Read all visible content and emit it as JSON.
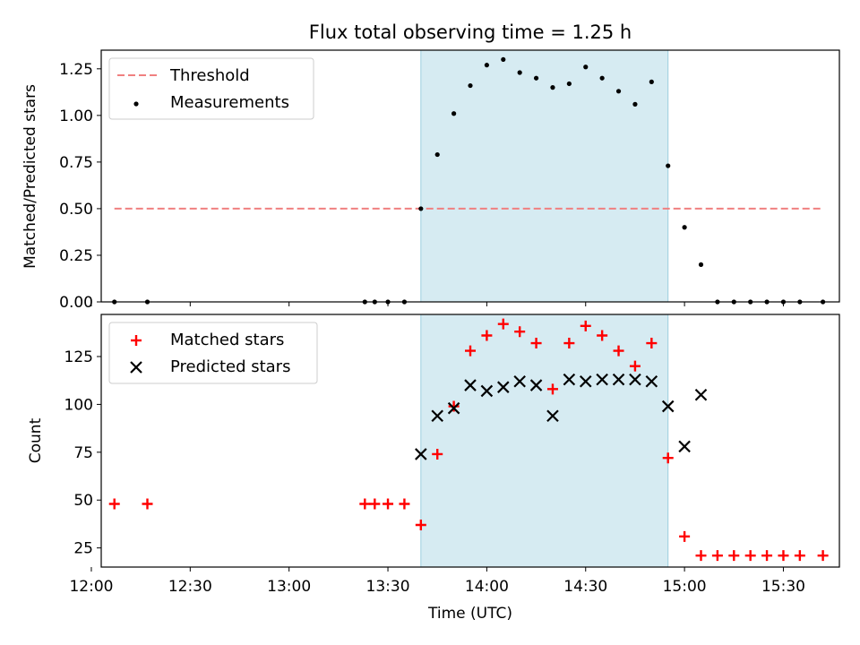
{
  "chart_data": [
    {
      "type": "scatter",
      "title": "Flux total observing time = 1.25 h",
      "xlabel": "",
      "ylabel": "Matched/Predicted stars",
      "xlim": [
        "12:03",
        "15:47"
      ],
      "ylim": [
        0,
        1.35
      ],
      "yticks": [
        0.0,
        0.25,
        0.5,
        0.75,
        1.0,
        1.25
      ],
      "ytick_labels": [
        "0.00",
        "0.25",
        "0.50",
        "0.75",
        "1.00",
        "1.25"
      ],
      "observing_window": [
        "13:40",
        "14:55"
      ],
      "legend_position": "upper-left",
      "series": [
        {
          "name": "Threshold",
          "kind": "dashed-line",
          "color": "#f08080",
          "points": [
            [
              "12:07",
              0.5
            ],
            [
              "15:42",
              0.5
            ]
          ]
        },
        {
          "name": "Measurements",
          "kind": "dot",
          "color": "#000000",
          "points": [
            [
              "12:07",
              0.0
            ],
            [
              "12:17",
              0.0
            ],
            [
              "13:23",
              0.0
            ],
            [
              "13:26",
              0.0
            ],
            [
              "13:30",
              0.0
            ],
            [
              "13:35",
              0.0
            ],
            [
              "13:40",
              0.5
            ],
            [
              "13:45",
              0.79
            ],
            [
              "13:50",
              1.01
            ],
            [
              "13:55",
              1.16
            ],
            [
              "14:00",
              1.27
            ],
            [
              "14:05",
              1.3
            ],
            [
              "14:10",
              1.23
            ],
            [
              "14:15",
              1.2
            ],
            [
              "14:20",
              1.15
            ],
            [
              "14:25",
              1.17
            ],
            [
              "14:30",
              1.26
            ],
            [
              "14:35",
              1.2
            ],
            [
              "14:40",
              1.13
            ],
            [
              "14:45",
              1.06
            ],
            [
              "14:50",
              1.18
            ],
            [
              "14:55",
              0.73
            ],
            [
              "15:00",
              0.4
            ],
            [
              "15:05",
              0.2
            ],
            [
              "15:10",
              0.0
            ],
            [
              "15:15",
              0.0
            ],
            [
              "15:20",
              0.0
            ],
            [
              "15:25",
              0.0
            ],
            [
              "15:30",
              0.0
            ],
            [
              "15:35",
              0.0
            ],
            [
              "15:42",
              0.0
            ]
          ]
        }
      ]
    },
    {
      "type": "scatter",
      "title": "",
      "xlabel": "Time (UTC)",
      "ylabel": "Count",
      "xlim": [
        "12:03",
        "15:47"
      ],
      "xticks": [
        "12:00",
        "12:30",
        "13:00",
        "13:30",
        "14:00",
        "14:30",
        "15:00",
        "15:30"
      ],
      "ylim": [
        15,
        147
      ],
      "yticks": [
        25,
        50,
        75,
        100,
        125
      ],
      "observing_window": [
        "13:40",
        "14:55"
      ],
      "legend_position": "upper-left",
      "series": [
        {
          "name": "Matched stars",
          "kind": "plus",
          "color": "#ff0000",
          "points": [
            [
              "12:07",
              48
            ],
            [
              "12:17",
              48
            ],
            [
              "13:23",
              48
            ],
            [
              "13:26",
              48
            ],
            [
              "13:30",
              48
            ],
            [
              "13:35",
              48
            ],
            [
              "13:40",
              37
            ],
            [
              "13:45",
              74
            ],
            [
              "13:50",
              99
            ],
            [
              "13:55",
              128
            ],
            [
              "14:00",
              136
            ],
            [
              "14:05",
              142
            ],
            [
              "14:10",
              138
            ],
            [
              "14:15",
              132
            ],
            [
              "14:20",
              108
            ],
            [
              "14:25",
              132
            ],
            [
              "14:30",
              141
            ],
            [
              "14:35",
              136
            ],
            [
              "14:40",
              128
            ],
            [
              "14:45",
              120
            ],
            [
              "14:50",
              132
            ],
            [
              "14:55",
              72
            ],
            [
              "15:00",
              31
            ],
            [
              "15:05",
              21
            ],
            [
              "15:10",
              21
            ],
            [
              "15:15",
              21
            ],
            [
              "15:20",
              21
            ],
            [
              "15:25",
              21
            ],
            [
              "15:30",
              21
            ],
            [
              "15:35",
              21
            ],
            [
              "15:42",
              21
            ]
          ]
        },
        {
          "name": "Predicted stars",
          "kind": "x",
          "color": "#000000",
          "points": [
            [
              "13:40",
              74
            ],
            [
              "13:45",
              94
            ],
            [
              "13:50",
              98
            ],
            [
              "13:55",
              110
            ],
            [
              "14:00",
              107
            ],
            [
              "14:05",
              109
            ],
            [
              "14:10",
              112
            ],
            [
              "14:15",
              110
            ],
            [
              "14:20",
              94
            ],
            [
              "14:25",
              113
            ],
            [
              "14:30",
              112
            ],
            [
              "14:35",
              113
            ],
            [
              "14:40",
              113
            ],
            [
              "14:45",
              113
            ],
            [
              "14:50",
              112
            ],
            [
              "14:55",
              99
            ],
            [
              "15:00",
              78
            ],
            [
              "15:05",
              105
            ]
          ]
        }
      ]
    }
  ]
}
